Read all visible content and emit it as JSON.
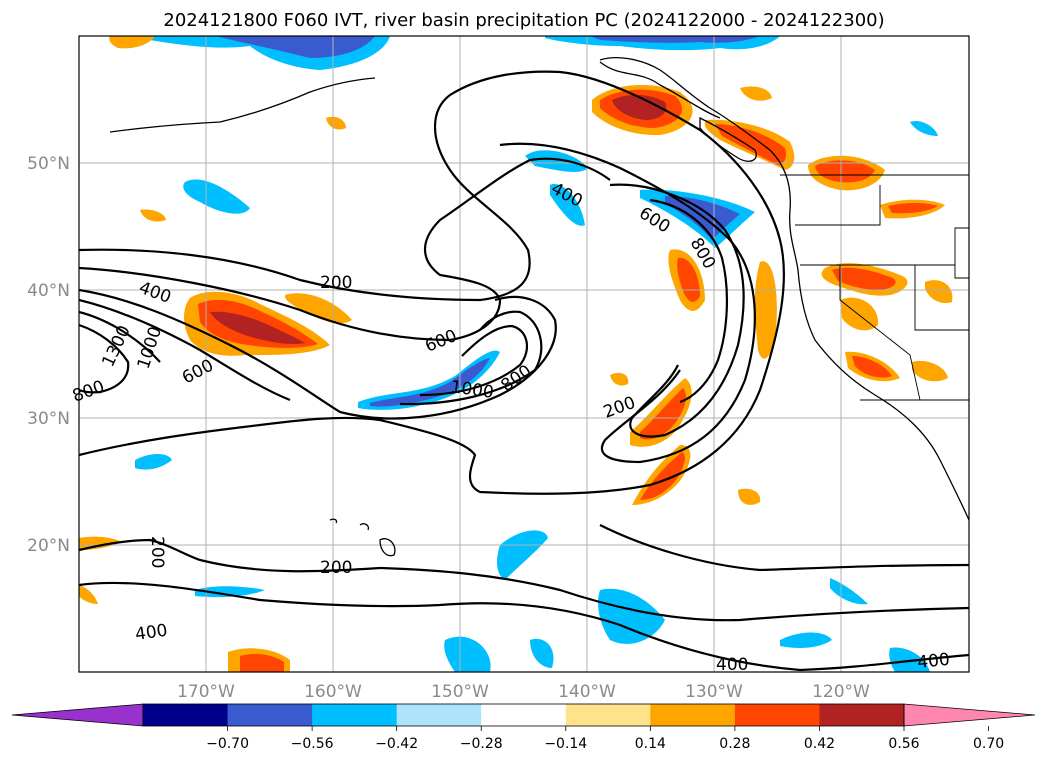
{
  "title": "2024121800 F060 IVT, river basin precipitation PC (2024122000 - 2024122300)",
  "lat_labels": [
    "50°N",
    "40°N",
    "30°N",
    "20°N"
  ],
  "lon_labels": [
    "170°W",
    "160°W",
    "150°W",
    "140°W",
    "130°W",
    "120°W"
  ],
  "contour_labels": [
    "200",
    "400",
    "600",
    "800",
    "1000",
    "1300"
  ],
  "colorbar": {
    "ticks": [
      "−0.70",
      "−0.56",
      "−0.42",
      "−0.28",
      "−0.14",
      "0.14",
      "0.28",
      "0.42",
      "0.56",
      "0.70"
    ],
    "colors": [
      "#9932cc",
      "#00008b",
      "#3a5bd0",
      "#00bfff",
      "#aee4fb",
      "#ffffff",
      "#ffe38a",
      "#ffa500",
      "#ff4500",
      "#b22222",
      "#ff86ad"
    ]
  },
  "palette": {
    "neg_strong": "#3a5bd0",
    "neg_mid": "#00bfff",
    "neg_weak": "#aee4fb",
    "pos_weak": "#ffe38a",
    "pos_mid": "#ffa500",
    "pos_strong": "#ff4500",
    "pos_max": "#b22222"
  }
}
